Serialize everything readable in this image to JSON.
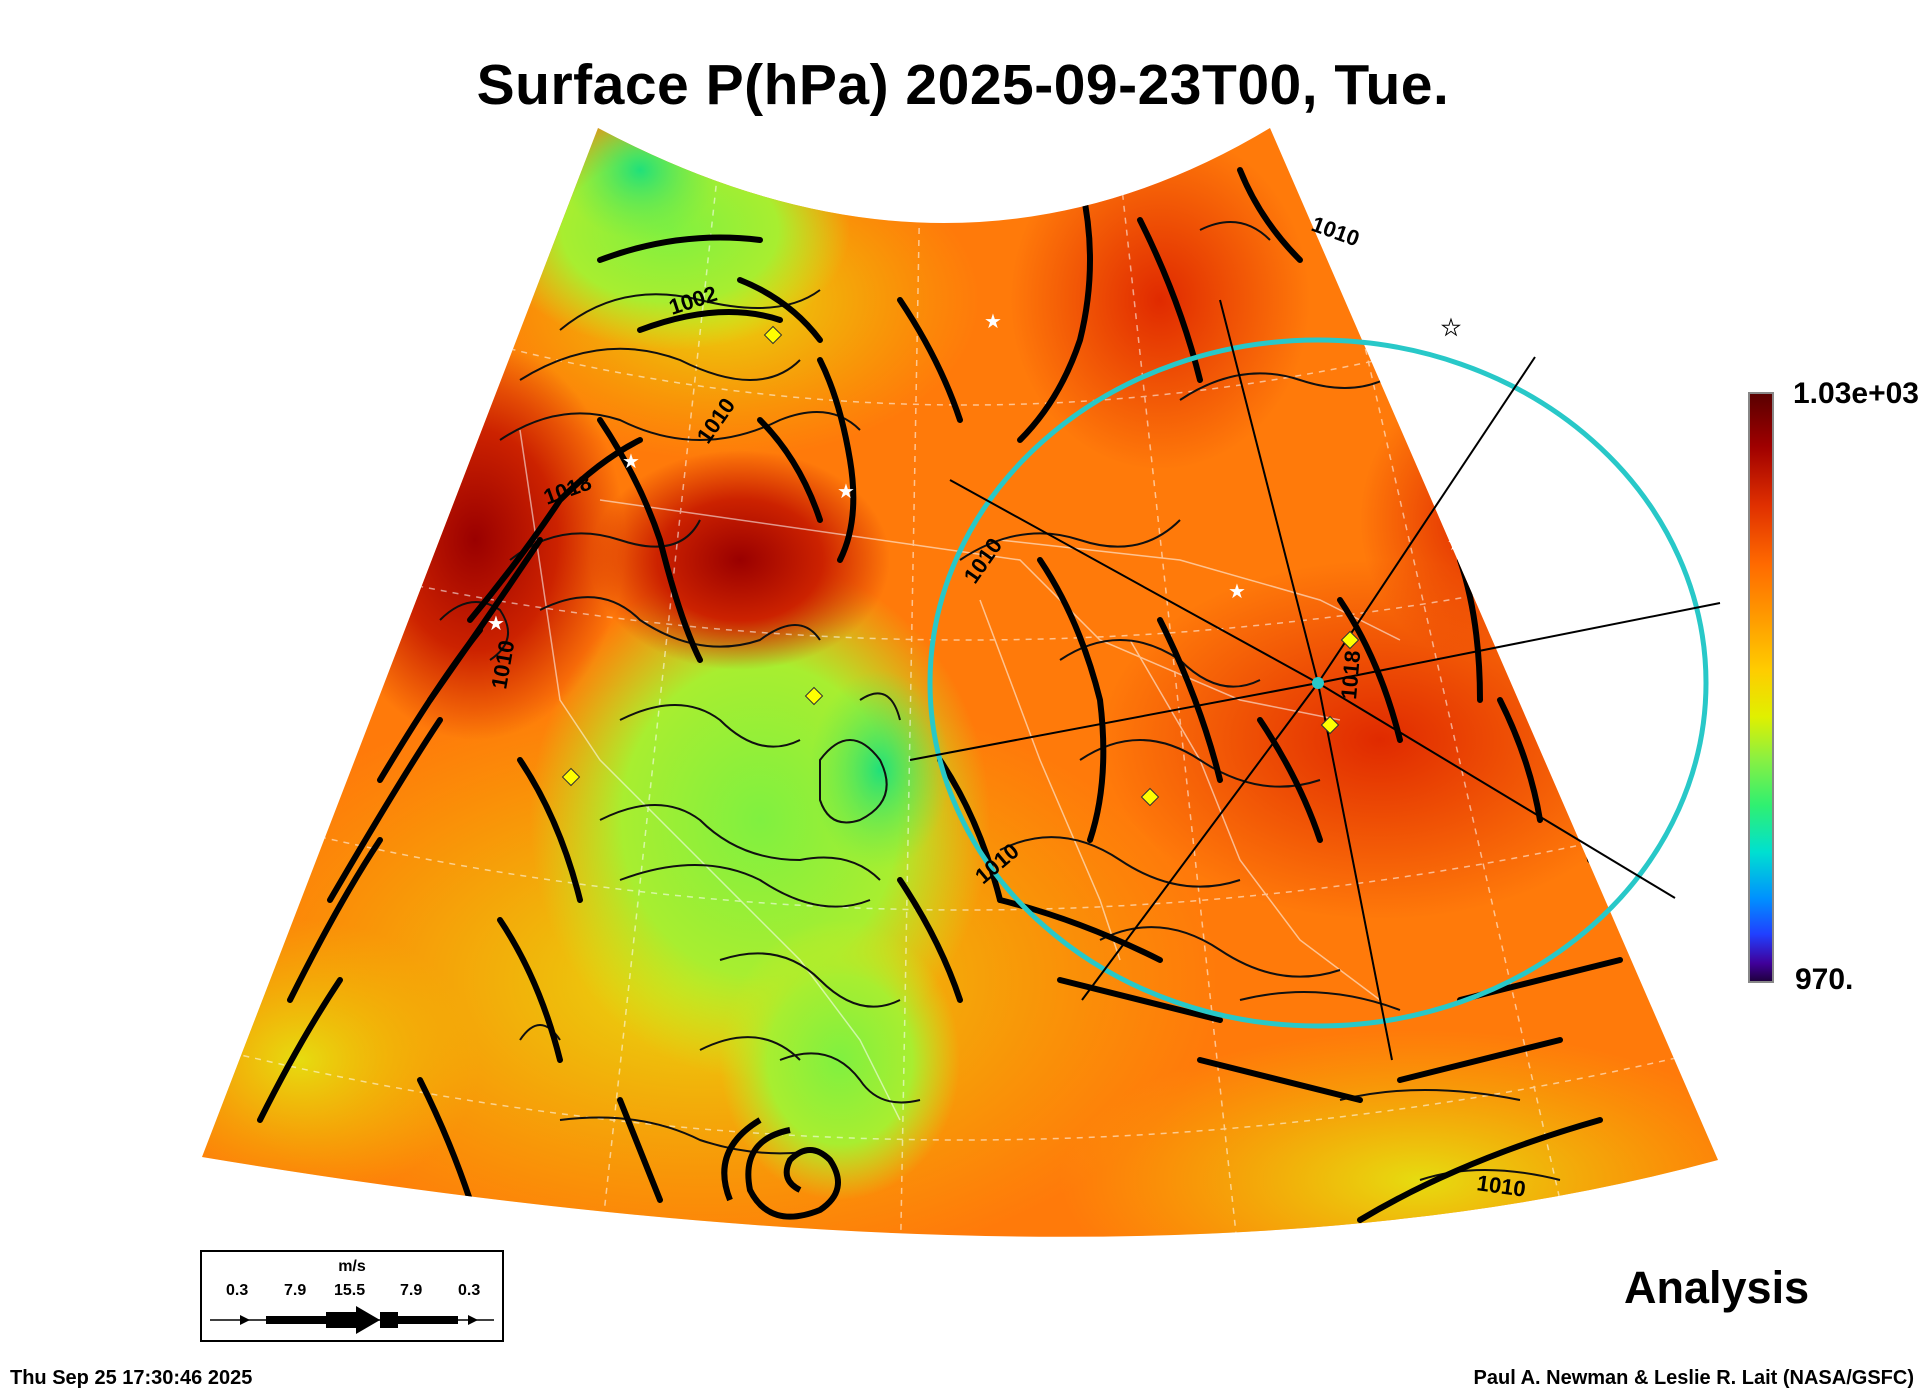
{
  "title": "Surface P(hPa) 2025-09-23T00, Tue.",
  "colorbar": {
    "max_label": "1.03e+03",
    "min_label": "970."
  },
  "contour_labels": [
    "1002",
    "1010",
    "1018",
    "1010",
    "1010",
    "1010",
    "1018",
    "1010",
    "1010"
  ],
  "analysis_label": "Analysis",
  "legend": {
    "unit": "m/s",
    "scale_values": [
      "0.3",
      "7.9",
      "15.5",
      "7.9",
      "0.3"
    ]
  },
  "footer": {
    "timestamp": "Thu Sep 25 17:30:46 2025",
    "credit": "Paul A. Newman & Leslie R. Lait (NASA/GSFC)"
  },
  "colors": {
    "high_pressure": "#b80000",
    "mid_pressure": "#ff6a00",
    "low_mid": "#f0d000",
    "low_pressure": "#7ef03a",
    "range_ring": "#28c8c8",
    "station_marker": "#ffff00"
  }
}
